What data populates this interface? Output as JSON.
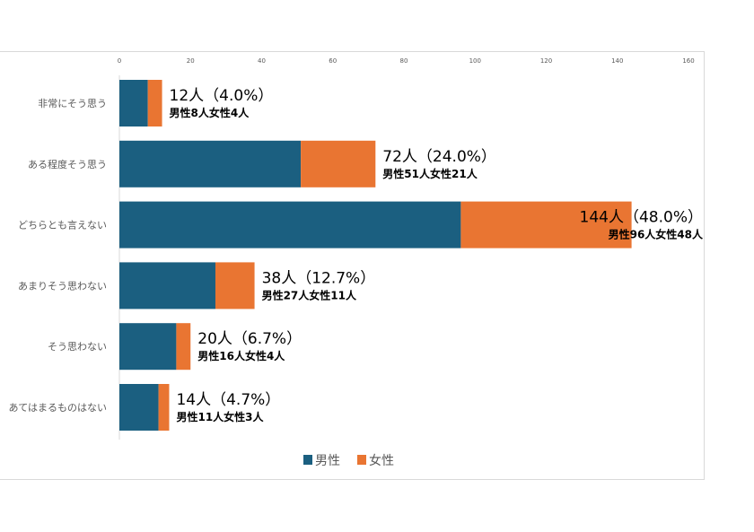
{
  "chart_data": {
    "type": "bar",
    "stacked": true,
    "orientation": "horizontal",
    "categories": [
      "非常にそう思う",
      "ある程度そう思う",
      "どちらとも言えない",
      "あまりそう思わない",
      "そう思わない",
      "あてはまるものはない"
    ],
    "series": [
      {
        "name": "男性",
        "values": [
          8,
          51,
          96,
          27,
          16,
          11
        ],
        "color": "#1b5f80"
      },
      {
        "name": "女性",
        "values": [
          4,
          21,
          48,
          11,
          4,
          3
        ],
        "color": "#e97532"
      }
    ],
    "data_labels": [
      {
        "main": "12人（4.0%）",
        "sub": "男性8人女性4人"
      },
      {
        "main": "72人（24.0%）",
        "sub": "男性51人女性21人"
      },
      {
        "main": "144人（48.0%）",
        "sub": "男性96人女性48人"
      },
      {
        "main": "38人（12.7%）",
        "sub": "男性27人女性11人"
      },
      {
        "main": "20人（6.7%）",
        "sub": "男性16人女性4人"
      },
      {
        "main": "14人（4.7%）",
        "sub": "男性11人女性3人"
      }
    ],
    "xlim": [
      0,
      160
    ],
    "xticks": [
      "0",
      "20",
      "40",
      "60",
      "80",
      "100",
      "120",
      "140",
      "160"
    ],
    "legend_position": "bottom",
    "grid": false
  }
}
